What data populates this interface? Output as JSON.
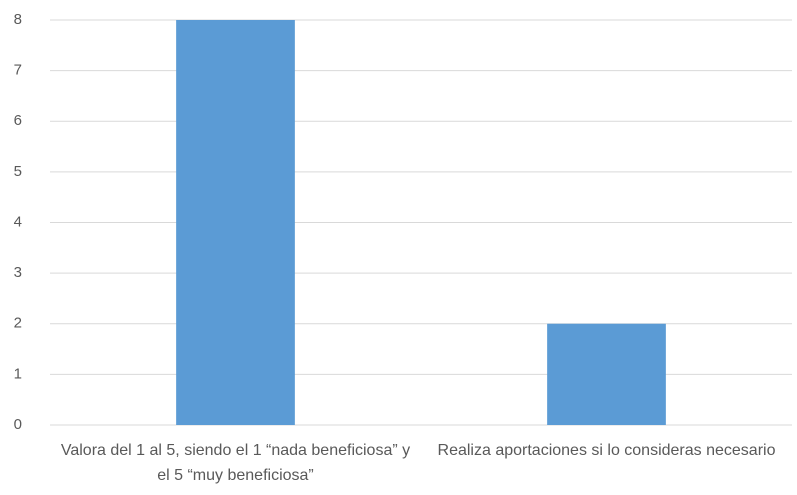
{
  "chart_data": {
    "type": "bar",
    "categories": [
      "Valora del 1 al 5, siendo el 1 “nada beneficiosa” y el 5 “muy beneficiosa”",
      "Realiza aportaciones si lo consideras necesario"
    ],
    "values": [
      8,
      2
    ],
    "color": "#5b9bd5",
    "ylim": [
      0,
      8
    ],
    "yticks": [
      0,
      1,
      2,
      3,
      4,
      5,
      6,
      7,
      8
    ],
    "grid": true
  }
}
